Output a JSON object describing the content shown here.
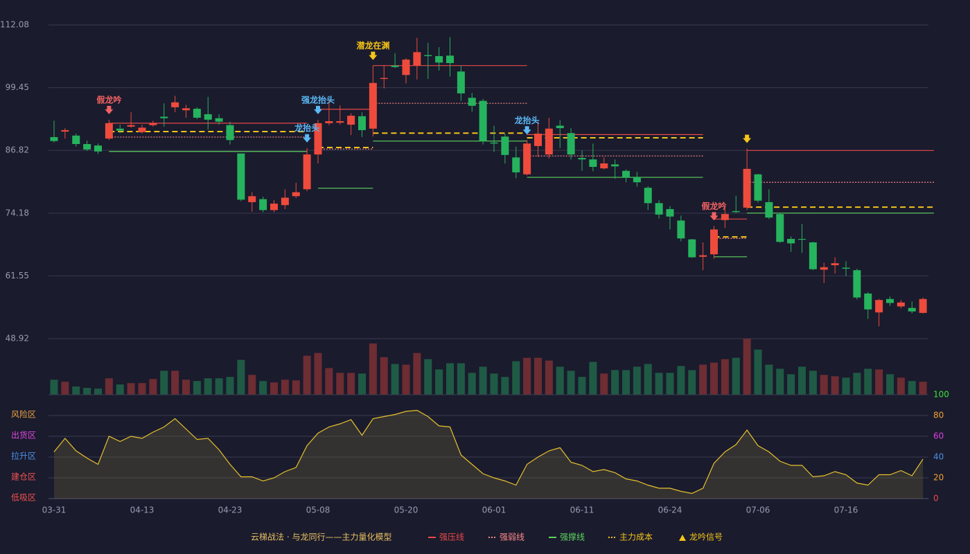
{
  "chart_data": [
    {
      "type": "candlestick",
      "title": "云梯战法 · 与龙同行——主力量化模型",
      "categories": [
        "03-31",
        null,
        null,
        null,
        null,
        null,
        null,
        null,
        "04-13",
        null,
        null,
        null,
        null,
        null,
        null,
        null,
        "04-23",
        null,
        null,
        null,
        null,
        null,
        null,
        null,
        "05-08",
        null,
        null,
        null,
        null,
        null,
        null,
        null,
        "05-20",
        null,
        null,
        null,
        null,
        null,
        null,
        null,
        "06-01",
        null,
        null,
        null,
        null,
        null,
        null,
        null,
        "06-11",
        null,
        null,
        null,
        null,
        null,
        null,
        null,
        "06-24",
        null,
        null,
        null,
        null,
        null,
        null,
        null,
        "07-06",
        null,
        null,
        null,
        null,
        null,
        null,
        null,
        "07-16",
        null,
        null,
        null,
        null,
        null,
        null,
        null
      ],
      "ohlc": [
        [
          89.5,
          92.8,
          88.4,
          88.7
        ],
        [
          90.6,
          91.3,
          89.2,
          90.9
        ],
        [
          89.8,
          90.2,
          87.6,
          88.1
        ],
        [
          88.1,
          88.8,
          86.7,
          87.0
        ],
        [
          87.8,
          88.2,
          86.1,
          86.6
        ],
        [
          89.2,
          93.0,
          88.9,
          92.3
        ],
        [
          91.2,
          92.0,
          90.3,
          90.8
        ],
        [
          91.6,
          94.5,
          91.4,
          91.9
        ],
        [
          90.5,
          92.0,
          90.2,
          91.4
        ],
        [
          91.9,
          92.8,
          91.6,
          92.3
        ],
        [
          93.6,
          96.3,
          91.6,
          93.3
        ],
        [
          95.5,
          97.8,
          94.5,
          96.5
        ],
        [
          94.9,
          96.0,
          93.4,
          95.3
        ],
        [
          95.2,
          95.5,
          93.1,
          93.4
        ],
        [
          94.1,
          97.6,
          91.0,
          93.0
        ],
        [
          93.3,
          94.1,
          92.0,
          92.6
        ],
        [
          91.9,
          92.6,
          88.0,
          88.9
        ],
        [
          86.2,
          86.2,
          76.6,
          76.9
        ],
        [
          76.4,
          78.4,
          74.5,
          77.6
        ],
        [
          77.0,
          77.5,
          74.4,
          74.8
        ],
        [
          74.8,
          76.8,
          74.4,
          76.1
        ],
        [
          75.8,
          79.0,
          75.0,
          77.3
        ],
        [
          77.6,
          80.3,
          77.2,
          78.4
        ],
        [
          79.0,
          87.3,
          78.6,
          86.0
        ],
        [
          86.0,
          93.0,
          84.2,
          92.3
        ],
        [
          92.3,
          97.0,
          91.9,
          92.7
        ],
        [
          92.4,
          95.9,
          92.0,
          92.7
        ],
        [
          92.0,
          94.3,
          89.9,
          93.8
        ],
        [
          93.7,
          94.5,
          89.5,
          90.9
        ],
        [
          91.2,
          103.9,
          89.6,
          100.4
        ],
        [
          101.2,
          104.0,
          99.3,
          101.4
        ],
        [
          103.9,
          106.4,
          103.4,
          103.6
        ],
        [
          102.0,
          105.4,
          100.3,
          105.1
        ],
        [
          103.9,
          109.5,
          101.1,
          106.6
        ],
        [
          106.0,
          108.5,
          101.2,
          105.8
        ],
        [
          105.8,
          107.6,
          102.9,
          104.5
        ],
        [
          105.9,
          109.6,
          101.7,
          104.4
        ],
        [
          102.7,
          103.8,
          96.8,
          98.3
        ],
        [
          97.4,
          98.4,
          94.6,
          95.8
        ],
        [
          96.8,
          97.2,
          88.0,
          88.7
        ],
        [
          88.4,
          91.8,
          86.5,
          88.2
        ],
        [
          89.6,
          90.2,
          84.2,
          85.9
        ],
        [
          85.4,
          87.6,
          81.2,
          82.4
        ],
        [
          82.0,
          88.9,
          81.8,
          88.2
        ],
        [
          87.7,
          92.6,
          85.5,
          90.2
        ],
        [
          86.0,
          93.4,
          85.2,
          91.2
        ],
        [
          91.8,
          92.9,
          87.3,
          91.3
        ],
        [
          90.3,
          91.3,
          85.0,
          86.0
        ],
        [
          85.3,
          86.8,
          82.7,
          85.0
        ],
        [
          85.0,
          88.2,
          82.6,
          83.5
        ],
        [
          83.2,
          85.4,
          83.0,
          84.2
        ],
        [
          84.0,
          85.0,
          81.1,
          83.6
        ],
        [
          82.7,
          83.0,
          80.4,
          81.3
        ],
        [
          81.5,
          82.5,
          79.5,
          80.4
        ],
        [
          79.3,
          79.6,
          74.8,
          76.2
        ],
        [
          76.2,
          76.8,
          73.1,
          73.9
        ],
        [
          75.0,
          75.6,
          70.9,
          73.5
        ],
        [
          72.7,
          73.7,
          68.5,
          69.1
        ],
        [
          68.9,
          69.0,
          65.2,
          65.3
        ],
        [
          65.4,
          68.3,
          62.7,
          65.7
        ],
        [
          65.9,
          71.6,
          65.0,
          70.9
        ],
        [
          72.8,
          75.5,
          71.2,
          74.0
        ],
        [
          74.6,
          77.7,
          74.2,
          74.4
        ],
        [
          75.3,
          87.2,
          74.8,
          83.1
        ],
        [
          82.0,
          82.1,
          76.3,
          76.7
        ],
        [
          76.4,
          79.0,
          73.0,
          73.3
        ],
        [
          74.0,
          74.3,
          68.2,
          68.4
        ],
        [
          69.0,
          69.5,
          66.4,
          68.1
        ],
        [
          69.0,
          72.0,
          66.2,
          68.9
        ],
        [
          68.3,
          68.4,
          62.7,
          62.9
        ],
        [
          62.8,
          64.2,
          60.1,
          63.3
        ],
        [
          63.7,
          65.3,
          62.0,
          64.1
        ],
        [
          63.2,
          64.5,
          61.5,
          63.0
        ],
        [
          62.7,
          63.0,
          56.8,
          57.2
        ],
        [
          58.0,
          58.3,
          52.9,
          54.8
        ],
        [
          54.2,
          56.9,
          51.4,
          56.7
        ],
        [
          56.9,
          57.4,
          55.5,
          56.1
        ],
        [
          55.4,
          56.7,
          55.0,
          56.2
        ],
        [
          55.1,
          56.4,
          54.0,
          54.4
        ],
        [
          54.1,
          57.2,
          54.0,
          56.9
        ]
      ],
      "up_color": "#ee4b3c",
      "down_color": "#26b35e",
      "ylim": [
        48.92,
        112.08
      ],
      "yticks": [
        48.92,
        61.55,
        74.18,
        86.82,
        99.45,
        112.08
      ],
      "grid": true,
      "level_series": [
        {
          "name": "强压线",
          "color": "#e84848",
          "style": "solid"
        },
        {
          "name": "强弱线",
          "color": "#ff8a8a",
          "style": "dotted"
        },
        {
          "name": "强撑线",
          "color": "#5ed35e",
          "style": "solid"
        },
        {
          "name": "主力成本",
          "color": "#f5c518",
          "style": "dashed"
        }
      ],
      "levels": [
        {
          "series": 0,
          "from": 5,
          "to": 22,
          "price": 92.3
        },
        {
          "series": 1,
          "from": 5,
          "to": 22,
          "price": 89.5
        },
        {
          "series": 3,
          "from": 5,
          "to": 22,
          "price": 90.6
        },
        {
          "series": 2,
          "from": 5,
          "to": 22,
          "price": 86.6
        },
        {
          "series": 0,
          "from": 24,
          "to": 28,
          "price": 95.1
        },
        {
          "series": 1,
          "from": 24,
          "to": 28,
          "price": 87.1
        },
        {
          "series": 3,
          "from": 24,
          "to": 28,
          "price": 87.4
        },
        {
          "series": 2,
          "from": 24,
          "to": 28,
          "price": 79.2
        },
        {
          "series": 0,
          "from": 29,
          "to": 42,
          "price": 103.9
        },
        {
          "series": 1,
          "from": 29,
          "to": 42,
          "price": 96.3
        },
        {
          "series": 3,
          "from": 29,
          "to": 42,
          "price": 90.3
        },
        {
          "series": 2,
          "from": 29,
          "to": 42,
          "price": 88.7
        },
        {
          "series": 0,
          "from": 43,
          "to": 58,
          "price": 90.0
        },
        {
          "series": 1,
          "from": 43,
          "to": 58,
          "price": 85.7
        },
        {
          "series": 3,
          "from": 43,
          "to": 58,
          "price": 89.35
        },
        {
          "series": 2,
          "from": 43,
          "to": 58,
          "price": 81.4
        },
        {
          "series": 0,
          "from": 60,
          "to": 62,
          "price": 73.0
        },
        {
          "series": 1,
          "from": 60,
          "to": 62,
          "price": 69.1
        },
        {
          "series": 3,
          "from": 60,
          "to": 62,
          "price": 69.4
        },
        {
          "series": 2,
          "from": 60,
          "to": 62,
          "price": 65.4
        },
        {
          "series": 0,
          "from": 63,
          "to": 79,
          "price": 86.8
        },
        {
          "series": 1,
          "from": 63,
          "to": 79,
          "price": 80.4
        },
        {
          "series": 3,
          "from": 63,
          "to": 79,
          "price": 75.4
        },
        {
          "series": 2,
          "from": 63,
          "to": 79,
          "price": 74.2
        }
      ],
      "signal_name": "龙吟信号",
      "signal_color": "#f5c518",
      "signals": [
        {
          "index": 5,
          "text": "假龙吟",
          "color": "#f26262"
        },
        {
          "index": 23,
          "text": "龙抬头",
          "color": "#5ab8f5"
        },
        {
          "index": 24,
          "text": "强龙抬头",
          "color": "#5ab8f5"
        },
        {
          "index": 29,
          "text": "潜龙在渊",
          "color": "#f5c518"
        },
        {
          "index": 43,
          "text": "龙抬头",
          "color": "#5ab8f5"
        },
        {
          "index": 60,
          "text": "假龙吟",
          "color": "#f26262"
        },
        {
          "index": 63,
          "color": "#f5c518"
        }
      ]
    },
    {
      "type": "bar",
      "values": [
        22,
        19,
        12,
        10,
        9,
        24,
        15,
        17,
        17,
        23,
        35,
        35,
        22,
        20,
        24,
        24,
        26,
        51,
        29,
        20,
        18,
        22,
        21,
        57,
        61,
        39,
        32,
        32,
        31,
        75,
        55,
        45,
        44,
        61,
        52,
        37,
        46,
        46,
        32,
        41,
        31,
        26,
        49,
        54,
        54,
        50,
        41,
        35,
        26,
        48,
        31,
        36,
        36,
        41,
        45,
        32,
        32,
        42,
        36,
        44,
        47,
        52,
        54,
        82,
        66,
        44,
        38,
        30,
        41,
        35,
        29,
        27,
        25,
        32,
        38,
        37,
        30,
        25,
        20,
        19
      ],
      "up_color": "#6e2c33",
      "down_color": "#1f5a45"
    },
    {
      "type": "area",
      "values": [
        45,
        58,
        46,
        39,
        33,
        60,
        55,
        60,
        58,
        64,
        69,
        77,
        67,
        57,
        58,
        47,
        33,
        21,
        21,
        17,
        20,
        26,
        30,
        51,
        63,
        69,
        72,
        76,
        61,
        77,
        79,
        81,
        84,
        85,
        79,
        70,
        69,
        42,
        33,
        24,
        20,
        17,
        13,
        33,
        40,
        46,
        49,
        35,
        32,
        26,
        28,
        25,
        19,
        17,
        13,
        10,
        10,
        7,
        5,
        10,
        34,
        45,
        52,
        66,
        51,
        45,
        36,
        32,
        32,
        21,
        22,
        26,
        23,
        15,
        13,
        23,
        23,
        27,
        22,
        38
      ],
      "color": "#e8c22c",
      "ylim": [
        0,
        100
      ],
      "yticks": [
        0,
        20,
        40,
        60,
        80,
        100
      ],
      "ytick_colors": [
        "#f04848",
        "#f0a030",
        "#4a90e2",
        "#e040e0",
        "#f0a030",
        "#3ee03e"
      ],
      "zones": [
        {
          "label": "风险区",
          "value": 80,
          "color": "#e8a040"
        },
        {
          "label": "出货区",
          "value": 60,
          "color": "#e048e0"
        },
        {
          "label": "拉升区",
          "value": 40,
          "color": "#4a90e2"
        },
        {
          "label": "建仓区",
          "value": 20,
          "color": "#f05050"
        },
        {
          "label": "低吸区",
          "value": 0,
          "color": "#f05050"
        }
      ]
    }
  ]
}
